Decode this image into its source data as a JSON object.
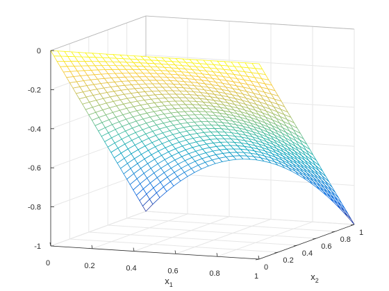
{
  "chart_data": {
    "type": "surface",
    "style": "mesh",
    "colormap": "parula",
    "grid": true,
    "xlabel": {
      "base": "x",
      "subscript": "1"
    },
    "ylabel": {
      "base": "x",
      "subscript": "2"
    },
    "xlim": [
      0,
      1
    ],
    "ylim": [
      0,
      1
    ],
    "zlim": [
      -1,
      0
    ],
    "xticks": [
      "0",
      "0.2",
      "0.4",
      "0.6",
      "0.8",
      "1"
    ],
    "yticks": [
      "0",
      "0.2",
      "0.4",
      "0.6",
      "0.8",
      "1"
    ],
    "zticks": [
      "0",
      "-0.2",
      "-0.4",
      "-0.6",
      "-0.8",
      "-1"
    ],
    "function": "z = -x2 + 0.3*x2*(x1*(1-x1)*4) (arched ridge rising along x1 at mid-span)",
    "mesh_size": [
      31,
      31
    ],
    "corner_values": [
      {
        "x1": 0,
        "x2": 0,
        "z": 0
      },
      {
        "x1": 1,
        "x2": 0,
        "z": 0
      },
      {
        "x1": 0,
        "x2": 1,
        "z": -1
      },
      {
        "x1": 1,
        "x2": 1,
        "z": -1
      },
      {
        "x1": 0.5,
        "x2": 1,
        "z": -0.7
      }
    ]
  }
}
